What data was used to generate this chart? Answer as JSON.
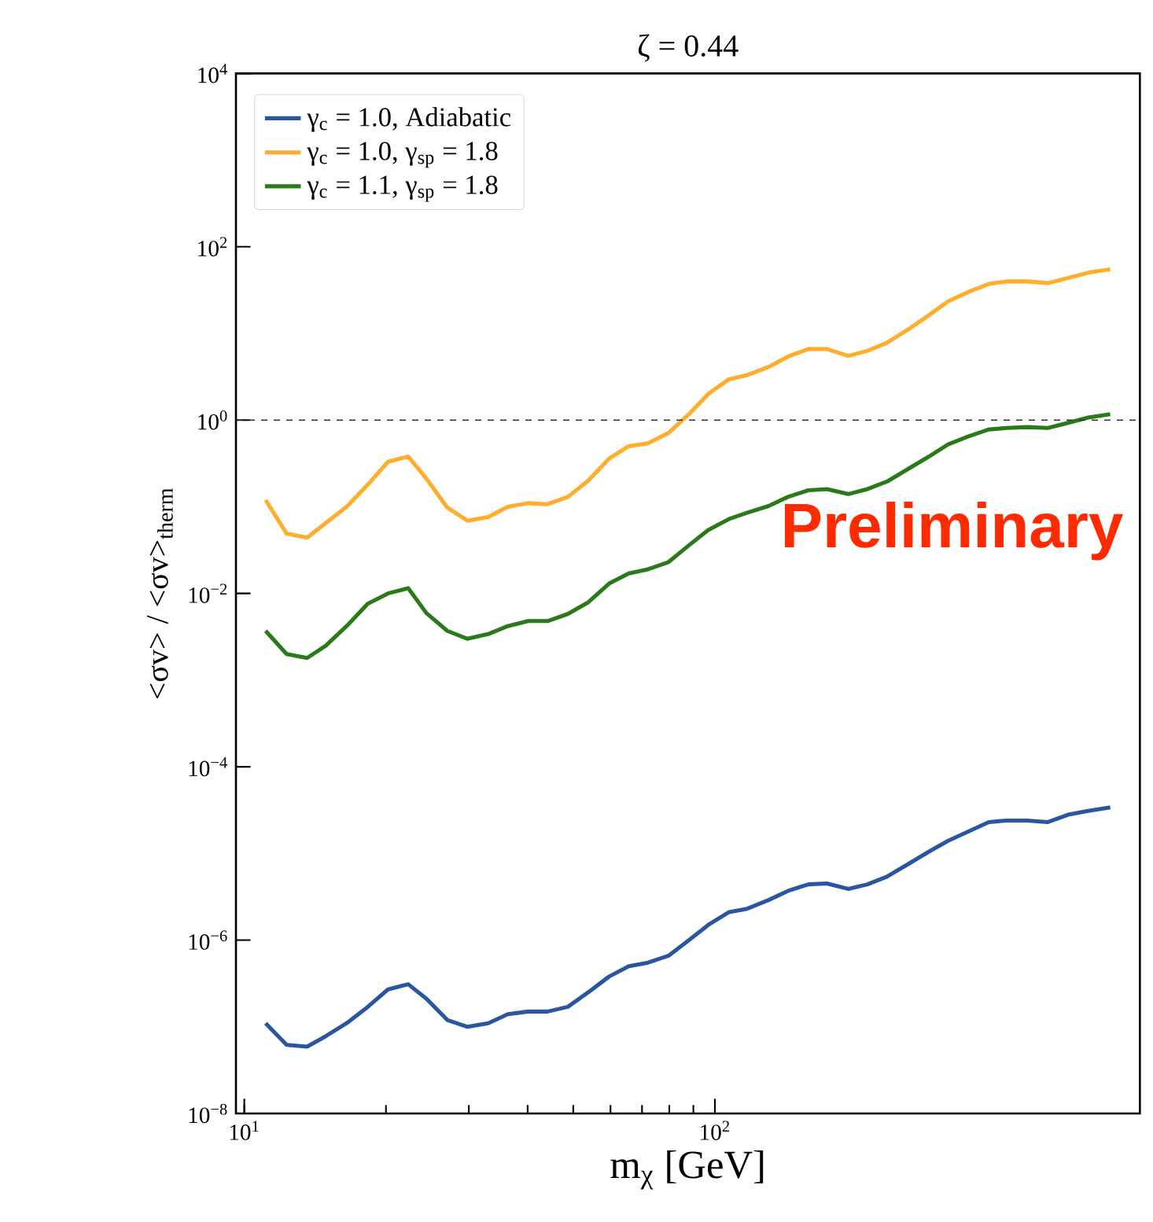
{
  "chart_data": {
    "type": "line",
    "title": "ζ = 0.44",
    "xlabel": "m$_{χ}$ [GeV]",
    "ylabel": "<σv> / <σv>$_{therm}$",
    "annotations": [
      "Preliminary"
    ],
    "x": [
      11.1,
      12.3,
      13.6,
      14.9,
      16.5,
      18.3,
      20.2,
      22.3,
      24.4,
      27.0,
      29.8,
      33.0,
      36.3,
      40.1,
      44.1,
      48.7,
      53.8,
      59.6,
      65.6,
      72.1,
      79.7,
      88.1,
      96.8,
      107,
      117,
      130,
      143,
      158,
      173,
      192,
      211,
      232,
      258,
      285,
      313,
      346,
      382,
      417,
      461,
      510,
      563,
      621,
      692
    ],
    "series": [
      {
        "name": "γ$_{c}$ = 1.0, Adiabatic",
        "color": "#2a55a0",
        "values": [
          1.1e-07,
          6.2e-08,
          5.9e-08,
          7.8e-08,
          1.1e-07,
          1.7e-07,
          2.7e-07,
          3.1e-07,
          2.1e-07,
          1.2e-07,
          1e-07,
          1.1e-07,
          1.4e-07,
          1.5e-07,
          1.5e-07,
          1.7e-07,
          2.5e-07,
          3.8e-07,
          5e-07,
          5.5e-07,
          6.6e-07,
          1e-06,
          1.5e-06,
          2.1e-06,
          2.3e-06,
          2.9e-06,
          3.7e-06,
          4.4e-06,
          4.5e-06,
          3.9e-06,
          4.4e-06,
          5.4e-06,
          7.6e-06,
          1.05e-05,
          1.4e-05,
          1.8e-05,
          2.3e-05,
          2.4e-05,
          2.4e-05,
          2.3e-05,
          2.8e-05,
          3.1e-05,
          3.4e-05
        ]
      },
      {
        "name": "γ$_{c}$ = 1.0, γ$_{sp}$ = 1.8",
        "color": "#ffad2a",
        "values": [
          0.12,
          0.049,
          0.044,
          0.065,
          0.1,
          0.18,
          0.33,
          0.38,
          0.21,
          0.098,
          0.069,
          0.076,
          0.1,
          0.11,
          0.107,
          0.13,
          0.2,
          0.36,
          0.5,
          0.54,
          0.71,
          1.17,
          2.0,
          2.95,
          3.3,
          4.1,
          5.4,
          6.6,
          6.6,
          5.5,
          6.3,
          7.8,
          11.2,
          16.2,
          23.4,
          30.2,
          37.2,
          39.8,
          39.8,
          38.0,
          43.6,
          50.1,
          55.0
        ]
      },
      {
        "name": "γ$_{c}$ = 1.1, γ$_{sp}$ = 1.8",
        "color": "#2a7a1a",
        "values": [
          0.0037,
          0.002,
          0.0018,
          0.0025,
          0.0042,
          0.0076,
          0.01,
          0.0115,
          0.0059,
          0.0037,
          0.003,
          0.0034,
          0.0042,
          0.0048,
          0.0048,
          0.0058,
          0.0079,
          0.013,
          0.017,
          0.019,
          0.023,
          0.036,
          0.054,
          0.072,
          0.085,
          0.102,
          0.13,
          0.155,
          0.16,
          0.14,
          0.16,
          0.195,
          0.275,
          0.38,
          0.525,
          0.65,
          0.78,
          0.81,
          0.83,
          0.81,
          0.93,
          1.07,
          1.17
        ]
      }
    ],
    "log": "xy",
    "xlim": [
      9.6,
      800
    ],
    "ylim": [
      1e-08,
      10000.0
    ],
    "xticks": [
      {
        "value": 10,
        "label": "10$^{1}$"
      },
      {
        "value": 100,
        "label": "10$^{2}$"
      }
    ],
    "yticks": [
      {
        "value": 1e-08,
        "label": "10$^{−8}$"
      },
      {
        "value": 1e-06,
        "label": "10$^{−6}$"
      },
      {
        "value": 0.0001,
        "label": "10$^{−4}$"
      },
      {
        "value": 0.01,
        "label": "10$^{−2}$"
      },
      {
        "value": 1,
        "label": "10$^{0}$"
      },
      {
        "value": 100,
        "label": "10$^{2}$"
      },
      {
        "value": 10000.0,
        "label": "10$^{4}$"
      }
    ],
    "ref_lines": [
      {
        "axis": "y",
        "value": 1,
        "color": "#333333",
        "line_style": "dashed"
      }
    ],
    "legend": "top left",
    "grid": false,
    "marker": "none",
    "line_style": "solid"
  }
}
